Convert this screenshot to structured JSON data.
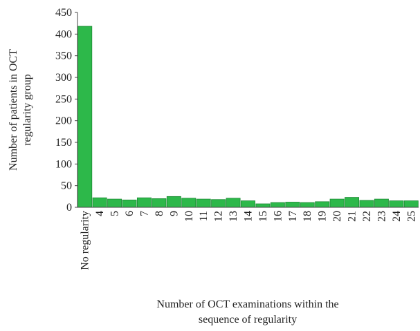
{
  "chart_data": {
    "type": "bar",
    "categories": [
      "No regularity",
      "4",
      "5",
      "6",
      "7",
      "8",
      "9",
      "10",
      "11",
      "12",
      "13",
      "14",
      "15",
      "16",
      "17",
      "18",
      "19",
      "20",
      "21",
      "22",
      "23",
      "24",
      "25"
    ],
    "values": [
      418,
      22,
      19,
      17,
      22,
      20,
      25,
      21,
      19,
      18,
      21,
      15,
      8,
      11,
      12,
      11,
      13,
      19,
      23,
      16,
      19,
      15,
      15
    ],
    "color": "#2db84a",
    "ylim": [
      0,
      450
    ],
    "yticks": [
      0,
      50,
      100,
      150,
      200,
      250,
      300,
      350,
      400,
      450
    ],
    "ylabel": [
      "Number of patients in OCT",
      "regularity group"
    ],
    "xlabel": [
      "Number of OCT examinations within the",
      "sequence of regularity"
    ],
    "grid": false
  }
}
